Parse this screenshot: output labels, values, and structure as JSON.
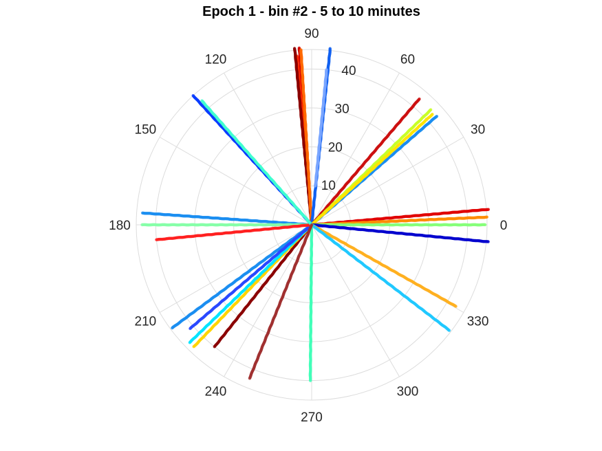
{
  "chart_data": {
    "type": "scatter",
    "coordinate_system": "polar",
    "title": "Epoch 1 - bin #2 - 5 to 10 minutes",
    "theta_ticks": [
      "0",
      "30",
      "60",
      "90",
      "120",
      "150",
      "180",
      "210",
      "240",
      "270",
      "300",
      "330"
    ],
    "theta_tick_values": [
      0,
      30,
      60,
      90,
      120,
      150,
      180,
      210,
      240,
      270,
      300,
      330
    ],
    "r_ticks": [
      "10",
      "20",
      "30",
      "40"
    ],
    "r_tick_values": [
      10,
      20,
      30,
      40
    ],
    "rlim": [
      0,
      45
    ],
    "r_tick_angle_deg": 80,
    "grid": true,
    "marker": "dot",
    "series": [
      {
        "theta": 94.0,
        "r": [
          0,
          45.5
        ],
        "color": "#d40000"
      },
      {
        "theta": 95.0,
        "r": [
          0,
          43.5
        ],
        "color": "#ff2a00"
      },
      {
        "theta": 95.5,
        "r": [
          0,
          45.5
        ],
        "color": "#8b0000"
      },
      {
        "theta": 93.5,
        "r": [
          0,
          45.0
        ],
        "color": "#ff6a00"
      },
      {
        "theta": 84.0,
        "r": [
          0,
          45.5
        ],
        "color": "#1060f0"
      },
      {
        "theta": 84.5,
        "r": [
          10,
          40
        ],
        "color": "#7aa5ff"
      },
      {
        "theta": 49.5,
        "r": [
          0,
          42.5
        ],
        "color": "#cc1010"
      },
      {
        "theta": 44.0,
        "r": [
          0,
          42.5
        ],
        "color": "#c8ff28"
      },
      {
        "theta": 41.0,
        "r": [
          0,
          42.5
        ],
        "color": "#1b8ef0"
      },
      {
        "theta": 42.5,
        "r": [
          0,
          42.0
        ],
        "color": "#ffe400"
      },
      {
        "theta": 5.0,
        "r": [
          0,
          45.5
        ],
        "color": "#e00000"
      },
      {
        "theta": 2.5,
        "r": [
          0,
          45.0
        ],
        "color": "#ff8c00"
      },
      {
        "theta": 0.0,
        "r": [
          0,
          44.5
        ],
        "color": "#86ff7a"
      },
      {
        "theta": -5.5,
        "r": [
          0,
          45.5
        ],
        "color": "#0000cd"
      },
      {
        "theta": -29.5,
        "r": [
          0,
          42.5
        ],
        "color": "#ffb020"
      },
      {
        "theta": -37.5,
        "r": [
          0,
          44.5
        ],
        "color": "#20c8ff"
      },
      {
        "theta": -90.5,
        "r": [
          0,
          40.0
        ],
        "color": "#40ffb8"
      },
      {
        "theta": -128.5,
        "r": [
          0,
          40.0
        ],
        "color": "#8b0000"
      },
      {
        "theta": -134.0,
        "r": [
          0,
          43.5
        ],
        "color": "#ffd400"
      },
      {
        "theta": -136.0,
        "r": [
          0,
          43.5
        ],
        "color": "#00e4ff"
      },
      {
        "theta": -143.5,
        "r": [
          0,
          44.5
        ],
        "color": "#1b8ef0"
      },
      {
        "theta": -139.5,
        "r": [
          0,
          41.0
        ],
        "color": "#2a48ff"
      },
      {
        "theta": 176.0,
        "r": [
          0,
          43.5
        ],
        "color": "#1b8ef0"
      },
      {
        "theta": 180.0,
        "r": [
          0,
          43.5
        ],
        "color": "#86ffa8"
      },
      {
        "theta": -174.5,
        "r": [
          0,
          40.0
        ],
        "color": "#ff2020"
      },
      {
        "theta": 132.5,
        "r": [
          0,
          45.0
        ],
        "color": "#0a3cff"
      },
      {
        "theta": 131.5,
        "r": [
          0,
          42.5
        ],
        "color": "#40ffd0"
      },
      {
        "theta": -112.0,
        "r": [
          0,
          42.5
        ],
        "color": "#a03030"
      }
    ]
  }
}
